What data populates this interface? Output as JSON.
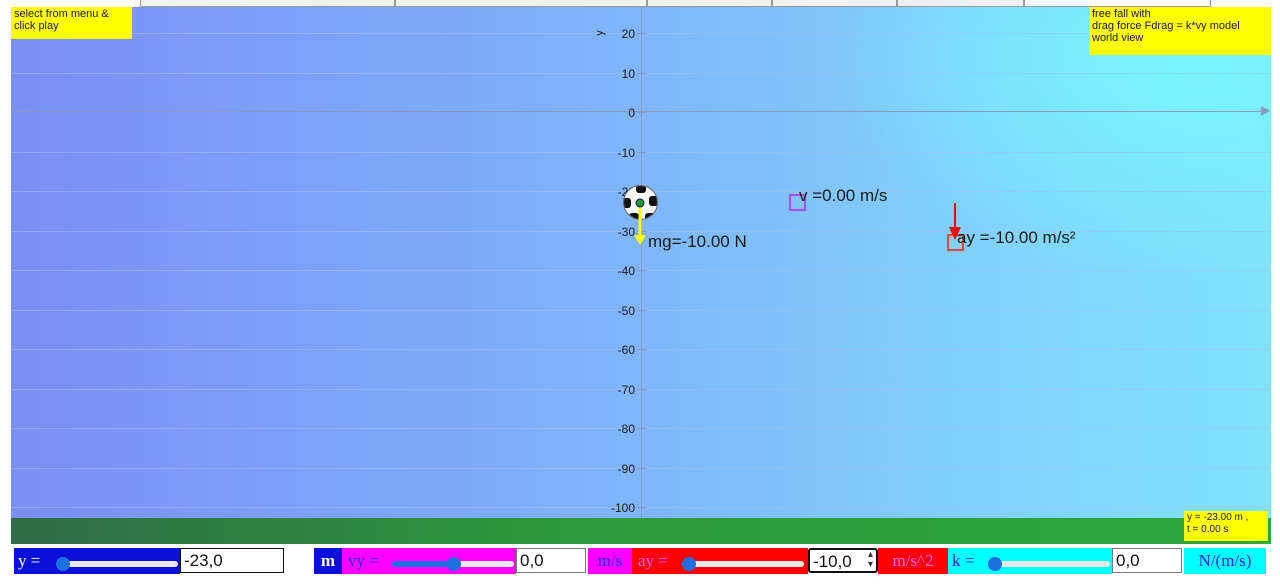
{
  "info": {
    "instruction_line1": "select from menu &",
    "instruction_line2": "click play",
    "model_line1": "free fall with",
    "model_line2": "drag force Fdrag = k*vy model",
    "model_line3": "world view",
    "readout_line1": "y = -23.00 m ,",
    "readout_line2": "t = 0.00 s"
  },
  "axis": {
    "y_label": "y",
    "ticks": [
      "20",
      "10",
      "0",
      "-10",
      "-20",
      "-30",
      "-40",
      "-50",
      "-60",
      "-70",
      "-80",
      "-90",
      "-100"
    ]
  },
  "labels": {
    "velocity": "v =0.00 m/s",
    "acceleration": "ay =-10.00 m/s²",
    "weight": "mg=-10.00 N"
  },
  "controls": {
    "y": {
      "label": "y =",
      "value": "-23,0",
      "unit": "m",
      "slider_level": 0.03
    },
    "vy": {
      "label": "vy =",
      "value": "0,0",
      "unit": "m/s",
      "slider_level": 0.5
    },
    "ay": {
      "label": "ay =",
      "value": "-10,0",
      "unit": "m/s^2",
      "slider_level": 0.0
    },
    "k": {
      "label": "k =",
      "value": "0,0",
      "unit": "N/(m/s)",
      "slider_level": 0.0
    }
  },
  "colors": {
    "y_control": "#0a10d8",
    "vy_control": "#ff00ff",
    "ay_control": "#ff0000",
    "k_control": "#00ffff",
    "note_bg": "#ffff00",
    "velocity_box": "#a64ef0",
    "accel_vector": "#ff0000",
    "weight_vector": "#ffff00"
  }
}
